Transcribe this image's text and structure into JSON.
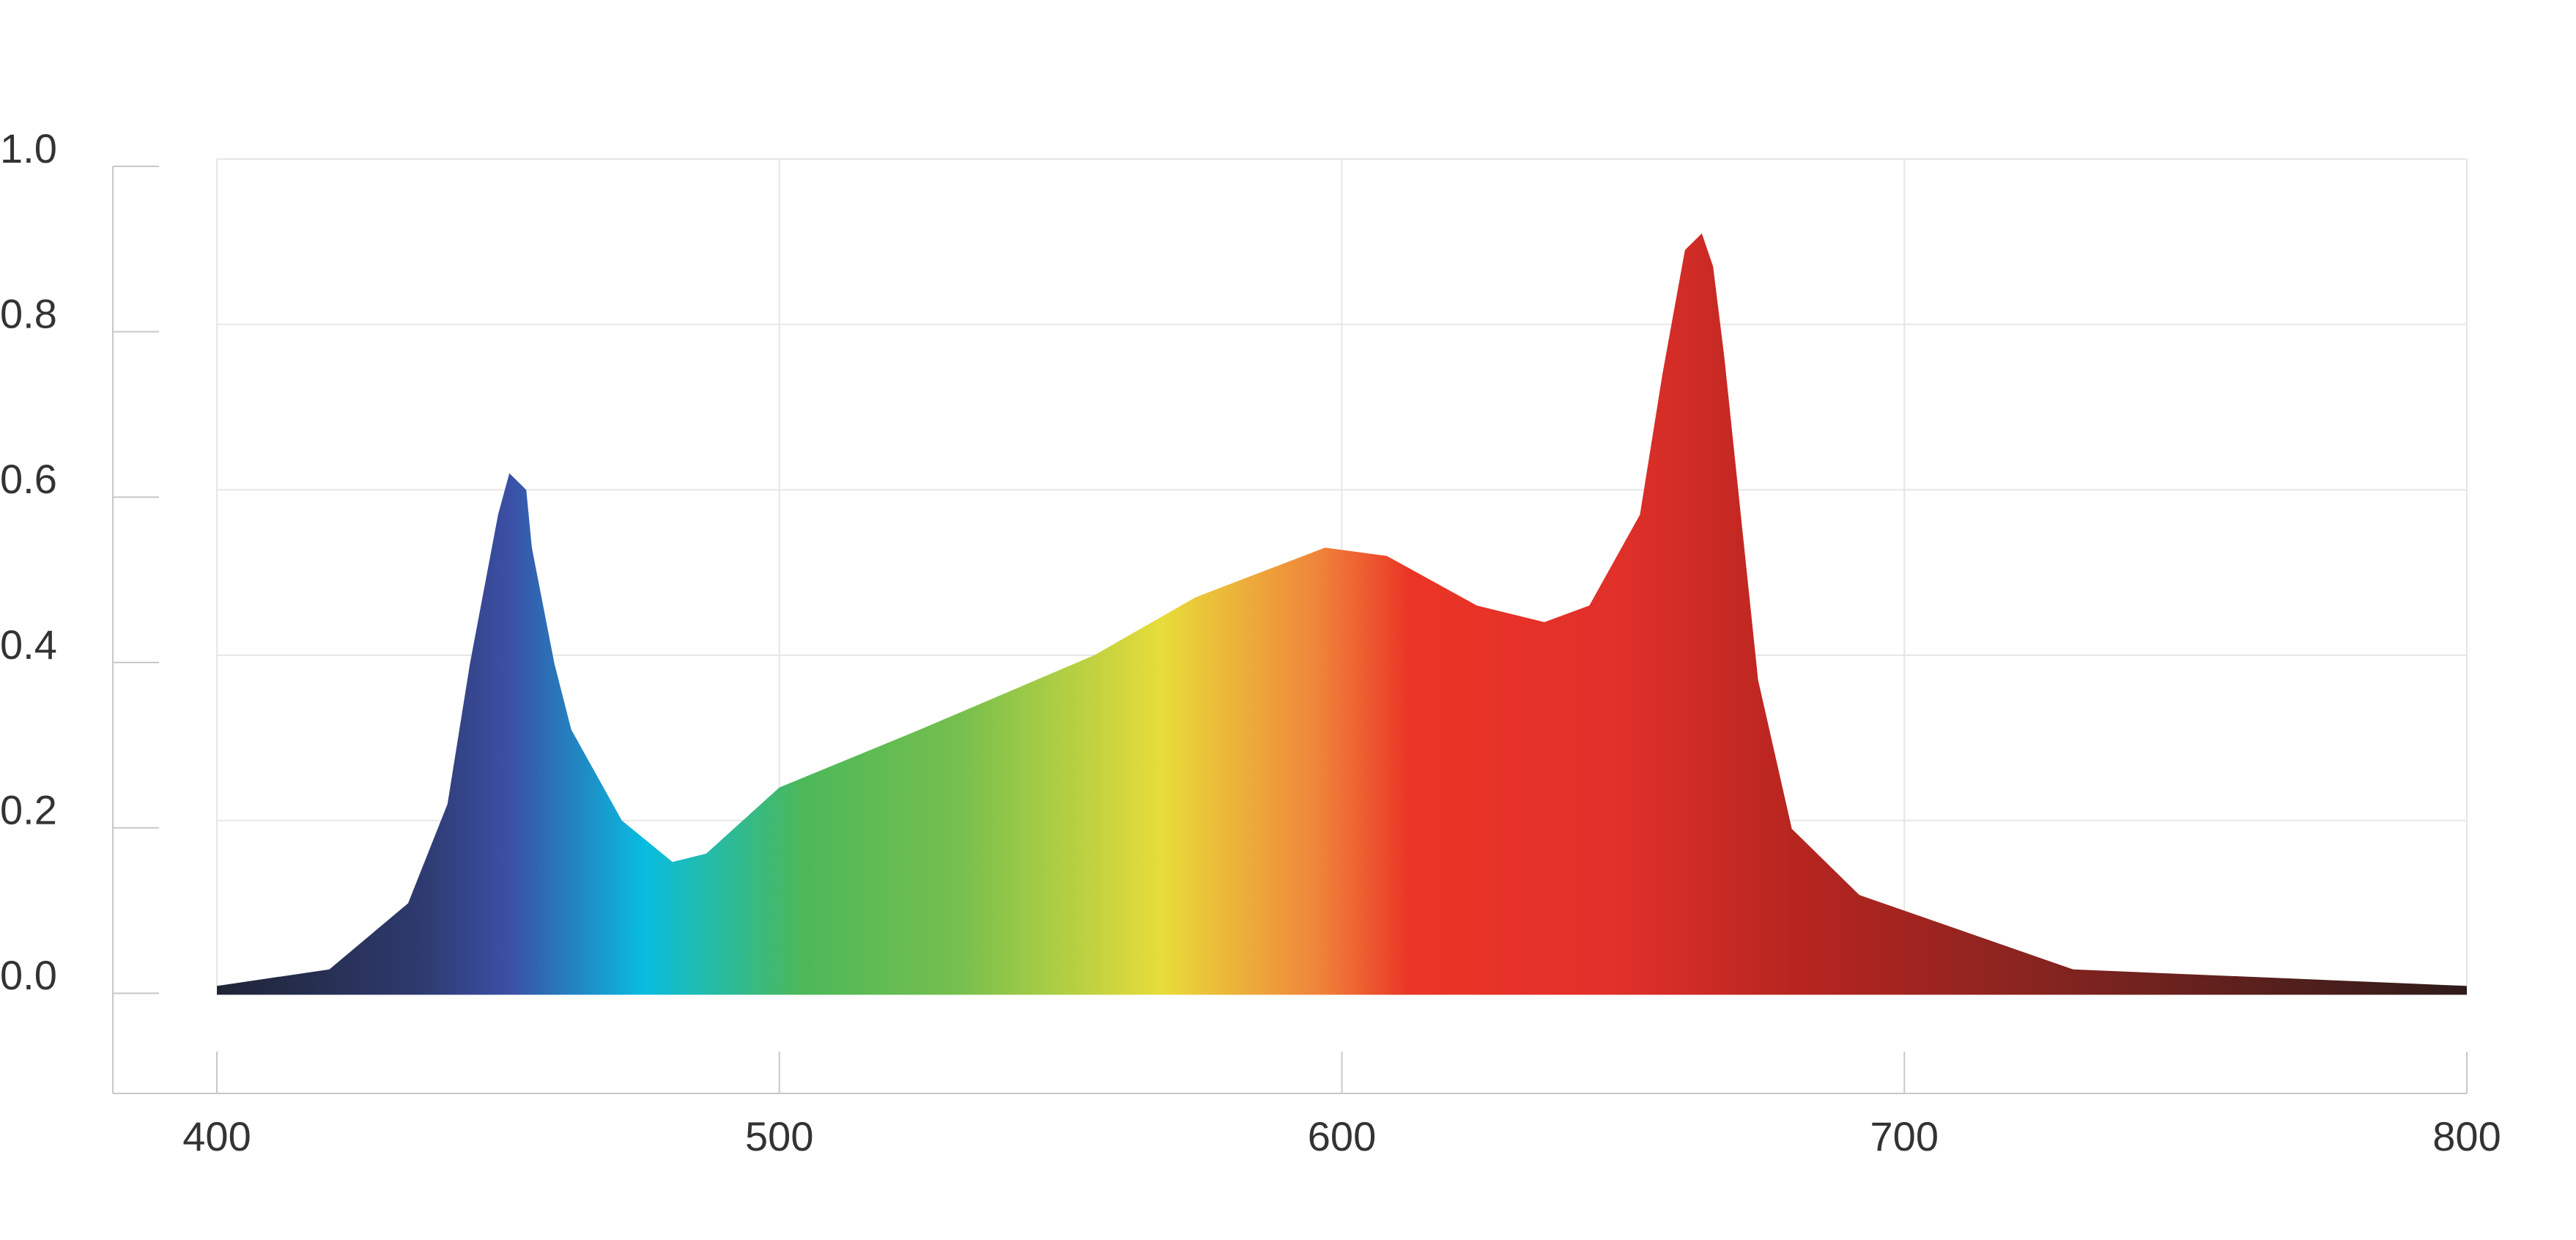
{
  "chart_data": {
    "type": "area",
    "x": [
      400,
      420,
      434,
      441,
      445,
      450,
      452,
      455,
      456,
      460,
      463,
      472,
      481,
      487,
      500,
      525,
      556,
      574,
      597,
      608,
      624,
      636,
      644,
      653,
      657,
      661,
      664,
      666,
      668,
      674,
      680,
      692,
      730,
      800
    ],
    "values": [
      0,
      0.02,
      0.1,
      0.22,
      0.39,
      0.57,
      0.62,
      0.6,
      0.53,
      0.39,
      0.31,
      0.2,
      0.15,
      0.16,
      0.24,
      0.31,
      0.4,
      0.47,
      0.53,
      0.52,
      0.46,
      0.44,
      0.46,
      0.57,
      0.74,
      0.89,
      0.91,
      0.87,
      0.76,
      0.37,
      0.19,
      0.11,
      0.02,
      0
    ],
    "xlim": [
      400,
      800
    ],
    "xticks": [
      400,
      500,
      600,
      700,
      800
    ],
    "ylim": [
      -0.13,
      1.0
    ],
    "yticks": [
      {
        "value": 0,
        "label": "0.0"
      },
      0.2,
      0.4,
      0.6,
      0.8,
      {
        "value": 1,
        "label": "1.0"
      }
    ],
    "grid": true
  }
}
